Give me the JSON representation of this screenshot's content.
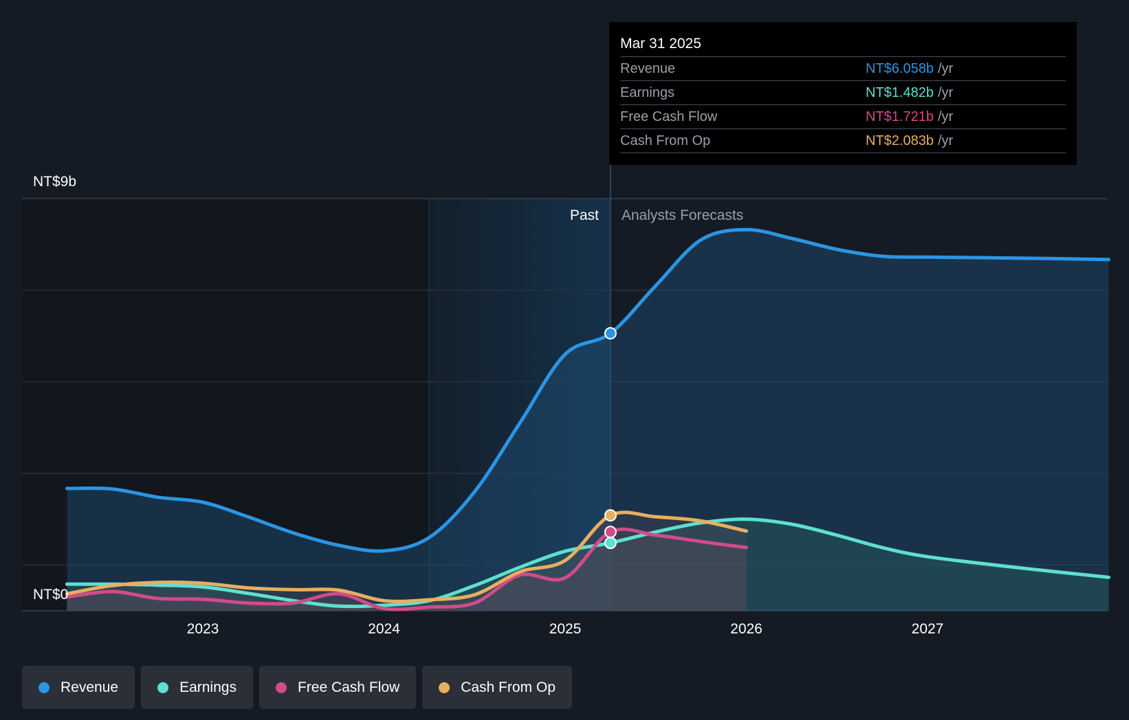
{
  "chart_data": {
    "type": "line",
    "currency_unit": "NT$ billions",
    "y_axis": {
      "min": 0,
      "max": 9,
      "top_label": "NT$9b",
      "bottom_label": "NT$0"
    },
    "x_axis": {
      "start": 2022.25,
      "end": 2028.0,
      "ticks": [
        "2023",
        "2024",
        "2025",
        "2026",
        "2027"
      ]
    },
    "grid": true,
    "region_labels": {
      "past": "Past",
      "forecast": "Analysts Forecasts"
    },
    "divider_x": 2025.25,
    "series": [
      {
        "name": "Revenue",
        "color": "#2b95e5",
        "points": [
          [
            2022.25,
            2.67
          ],
          [
            2022.5,
            2.66
          ],
          [
            2022.75,
            2.48
          ],
          [
            2023.0,
            2.37
          ],
          [
            2023.25,
            2.05
          ],
          [
            2023.5,
            1.7
          ],
          [
            2023.75,
            1.43
          ],
          [
            2024.0,
            1.31
          ],
          [
            2024.25,
            1.6
          ],
          [
            2024.5,
            2.6
          ],
          [
            2024.75,
            4.1
          ],
          [
            2025.0,
            5.6
          ],
          [
            2025.25,
            6.058
          ],
          [
            2025.5,
            7.1
          ],
          [
            2025.75,
            8.1
          ],
          [
            2026.0,
            8.32
          ],
          [
            2026.25,
            8.13
          ],
          [
            2026.5,
            7.89
          ],
          [
            2026.75,
            7.74
          ],
          [
            2027.0,
            7.72
          ],
          [
            2027.5,
            7.7
          ],
          [
            2028.0,
            7.67
          ]
        ],
        "forecast_from": 2025.25
      },
      {
        "name": "Earnings",
        "color": "#5ee0cf",
        "points": [
          [
            2022.25,
            0.58
          ],
          [
            2022.5,
            0.58
          ],
          [
            2022.75,
            0.56
          ],
          [
            2023.0,
            0.52
          ],
          [
            2023.25,
            0.38
          ],
          [
            2023.5,
            0.22
          ],
          [
            2023.75,
            0.1
          ],
          [
            2024.0,
            0.12
          ],
          [
            2024.25,
            0.22
          ],
          [
            2024.5,
            0.55
          ],
          [
            2024.75,
            0.95
          ],
          [
            2025.0,
            1.3
          ],
          [
            2025.25,
            1.482
          ],
          [
            2025.5,
            1.72
          ],
          [
            2025.75,
            1.92
          ],
          [
            2026.0,
            2.0
          ],
          [
            2026.25,
            1.89
          ],
          [
            2026.5,
            1.65
          ],
          [
            2026.75,
            1.38
          ],
          [
            2027.0,
            1.18
          ],
          [
            2027.5,
            0.94
          ],
          [
            2028.0,
            0.73
          ]
        ],
        "forecast_from": 2025.25
      },
      {
        "name": "Free Cash Flow",
        "color": "#d24b8a",
        "points": [
          [
            2022.25,
            0.3
          ],
          [
            2022.5,
            0.42
          ],
          [
            2022.75,
            0.27
          ],
          [
            2023.0,
            0.25
          ],
          [
            2023.25,
            0.17
          ],
          [
            2023.5,
            0.17
          ],
          [
            2023.75,
            0.37
          ],
          [
            2024.0,
            0.05
          ],
          [
            2024.25,
            0.08
          ],
          [
            2024.5,
            0.17
          ],
          [
            2024.75,
            0.78
          ],
          [
            2025.0,
            0.72
          ],
          [
            2025.25,
            1.721
          ],
          [
            2025.5,
            1.65
          ],
          [
            2025.75,
            1.51
          ],
          [
            2026.0,
            1.38
          ]
        ],
        "forecast_from": 2025.25
      },
      {
        "name": "Cash From Op",
        "color": "#e8af5f",
        "points": [
          [
            2022.25,
            0.37
          ],
          [
            2022.5,
            0.55
          ],
          [
            2022.75,
            0.62
          ],
          [
            2023.0,
            0.6
          ],
          [
            2023.25,
            0.5
          ],
          [
            2023.5,
            0.46
          ],
          [
            2023.75,
            0.45
          ],
          [
            2024.0,
            0.22
          ],
          [
            2024.25,
            0.24
          ],
          [
            2024.5,
            0.35
          ],
          [
            2024.75,
            0.85
          ],
          [
            2025.0,
            1.1
          ],
          [
            2025.25,
            2.083
          ],
          [
            2025.5,
            2.05
          ],
          [
            2025.75,
            1.96
          ],
          [
            2026.0,
            1.74
          ]
        ],
        "forecast_from": 2025.25
      }
    ],
    "tooltip": {
      "date": "Mar 31 2025",
      "rows": [
        {
          "label": "Revenue",
          "value": "NT$6.058b",
          "unit": "/yr",
          "color": "#2b95e5"
        },
        {
          "label": "Earnings",
          "value": "NT$1.482b",
          "unit": "/yr",
          "color": "#5ee0cf"
        },
        {
          "label": "Free Cash Flow",
          "value": "NT$1.721b",
          "unit": "/yr",
          "color": "#d24b8a"
        },
        {
          "label": "Cash From Op",
          "value": "NT$2.083b",
          "unit": "/yr",
          "color": "#e8af5f"
        }
      ]
    },
    "legend": [
      {
        "label": "Revenue",
        "color": "#2b95e5"
      },
      {
        "label": "Earnings",
        "color": "#5ee0cf"
      },
      {
        "label": "Free Cash Flow",
        "color": "#d24b8a"
      },
      {
        "label": "Cash From Op",
        "color": "#e8af5f"
      }
    ]
  }
}
